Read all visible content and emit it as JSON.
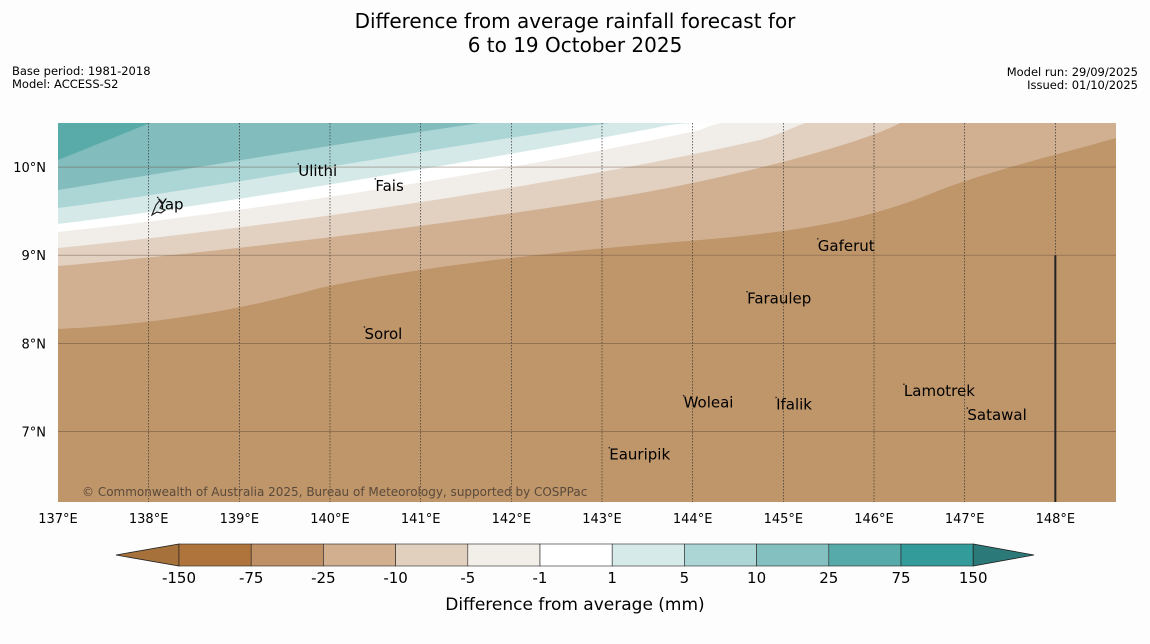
{
  "title": {
    "line1": "Difference from average rainfall forecast for",
    "line2": "6 to 19 October 2025"
  },
  "meta": {
    "base_period": "Base period: 1981-2018",
    "model": "Model: ACCESS-S2",
    "model_run": "Model run: 29/09/2025",
    "issued": "Issued: 01/10/2025"
  },
  "copyright": "© Commonwealth of Australia 2025, Bureau of Meteorology, supported by COSPPac",
  "map": {
    "lon_range": [
      137,
      149
    ],
    "lat_range": [
      6.2,
      10.5
    ],
    "lon_ticks": [
      {
        "value": 137,
        "label": "137°E"
      },
      {
        "value": 138,
        "label": "138°E"
      },
      {
        "value": 139,
        "label": "139°E"
      },
      {
        "value": 140,
        "label": "140°E"
      },
      {
        "value": 141,
        "label": "141°E"
      },
      {
        "value": 142,
        "label": "142°E"
      },
      {
        "value": 143,
        "label": "143°E"
      },
      {
        "value": 144,
        "label": "144°E"
      },
      {
        "value": 145,
        "label": "145°E"
      },
      {
        "value": 146,
        "label": "146°E"
      },
      {
        "value": 147,
        "label": "147°E"
      },
      {
        "value": 148,
        "label": "148°E"
      }
    ],
    "lat_ticks": [
      {
        "value": 10,
        "label": "10°N"
      },
      {
        "value": 9,
        "label": "9°N"
      },
      {
        "value": 8,
        "label": "8°N"
      },
      {
        "value": 7,
        "label": "7°N"
      }
    ],
    "places": [
      {
        "name": "Yap",
        "lon": 138.1,
        "lat": 9.52
      },
      {
        "name": "Ulithi",
        "lon": 139.65,
        "lat": 9.9
      },
      {
        "name": "Fais",
        "lon": 140.5,
        "lat": 9.73
      },
      {
        "name": "Gaferut",
        "lon": 145.38,
        "lat": 9.05
      },
      {
        "name": "Faraulep",
        "lon": 144.6,
        "lat": 8.45
      },
      {
        "name": "Sorol",
        "lon": 140.38,
        "lat": 8.05
      },
      {
        "name": "Woleai",
        "lon": 143.9,
        "lat": 7.27
      },
      {
        "name": "Ifalik",
        "lon": 144.92,
        "lat": 7.25
      },
      {
        "name": "Lamotrek",
        "lon": 146.33,
        "lat": 7.4
      },
      {
        "name": "Satawal",
        "lon": 147.03,
        "lat": 7.13
      },
      {
        "name": "Eauripik",
        "lon": 143.08,
        "lat": 6.68
      }
    ],
    "boundary_lon": 148.0,
    "fill_colors": [
      "#59abaa",
      "#82bcbc",
      "#acd5d5",
      "#d6e9e9",
      "#ffffff",
      "#f1ede8",
      "#e2d1c0",
      "#d1b092",
      "#bf956a"
    ]
  },
  "colorbar": {
    "labels": [
      "-150",
      "-75",
      "-25",
      "-10",
      "-5",
      "-1",
      "1",
      "5",
      "10",
      "25",
      "75",
      "150"
    ],
    "colors": [
      "#a6713b",
      "#af743c",
      "#bf8f66",
      "#d2af8f",
      "#e2d0be",
      "#f2eee8",
      "#ffffff",
      "#d6eaea",
      "#acd6d6",
      "#84c0c0",
      "#57aaaa",
      "#339b9a",
      "#2b7a79"
    ],
    "title": "Difference from average (mm)"
  }
}
